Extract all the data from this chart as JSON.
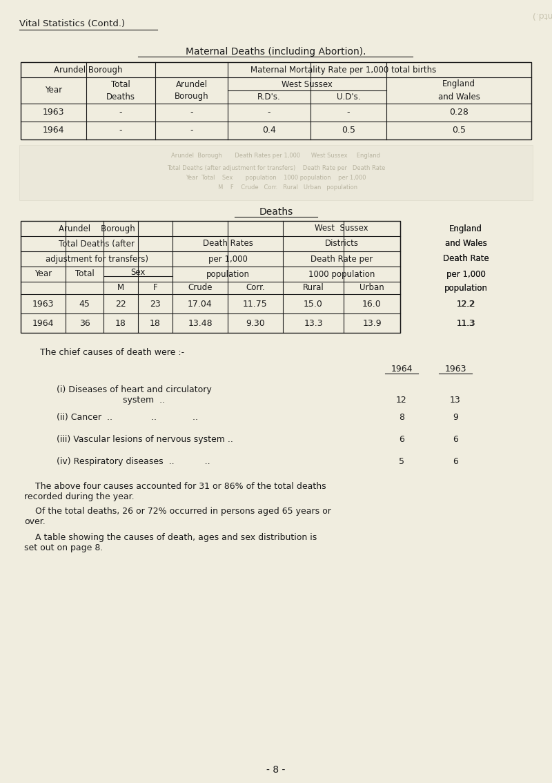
{
  "bg_color": "#f0eddf",
  "text_color": "#1a1a1a",
  "page_title_left": "Vital Statistics (Contd.)",
  "section1_title": "Maternal Deaths (including Abortion).",
  "section2_title": "Deaths",
  "footer_text": "- 8 -",
  "t1_data": [
    [
      "1963",
      "-",
      "-",
      "-",
      "-",
      "0.28"
    ],
    [
      "1964",
      "-",
      "-",
      "0.4",
      "0.5",
      "0.5"
    ]
  ],
  "t2_data": [
    [
      "1963",
      "45",
      "22",
      "23",
      "17.04",
      "11.75",
      "15.0",
      "16.0",
      "12.2"
    ],
    [
      "1964",
      "36",
      "18",
      "18",
      "13.48",
      "9.30",
      "13.3",
      "13.9",
      "11.3"
    ]
  ],
  "cause_vals_1964": [
    "12",
    "8",
    "6",
    "5"
  ],
  "cause_vals_1963": [
    "13",
    "9",
    "6",
    "6"
  ]
}
